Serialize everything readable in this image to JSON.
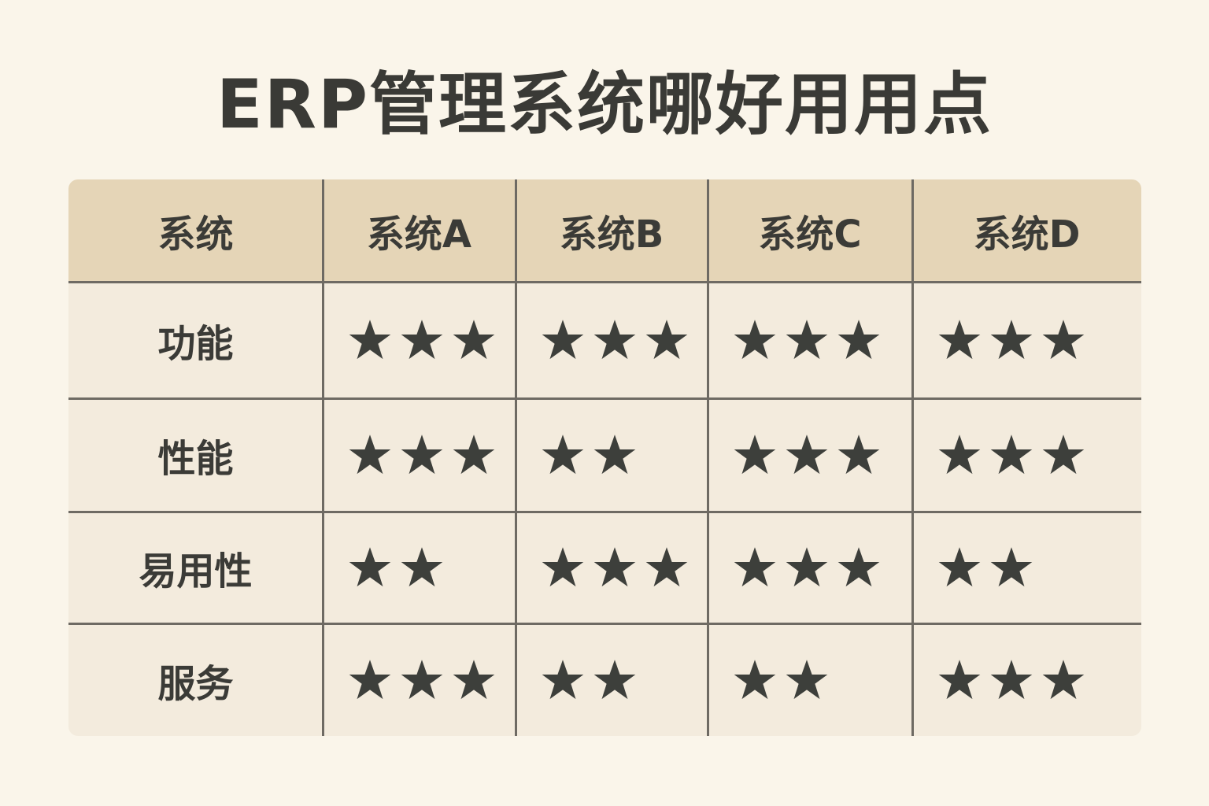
{
  "title": "ERP管理系统哪好用用点",
  "colors": {
    "background": "#faf5ea",
    "header": "#e5d5b7",
    "body": "#f3ebdd",
    "star": "#3d3f3b",
    "grid": "#6e6a63"
  },
  "chart_data": {
    "type": "table",
    "columns": [
      "系统",
      "系统A",
      "系统B",
      "系统C",
      "系统D"
    ],
    "rows": [
      {
        "label": "功能",
        "ratings": [
          3,
          3,
          3,
          3
        ]
      },
      {
        "label": "性能",
        "ratings": [
          3,
          2,
          3,
          3
        ]
      },
      {
        "label": "易用性",
        "ratings": [
          2,
          3,
          3,
          2
        ]
      },
      {
        "label": "服务",
        "ratings": [
          3,
          2,
          2,
          3
        ]
      }
    ],
    "rating_icon": "star-icon"
  }
}
